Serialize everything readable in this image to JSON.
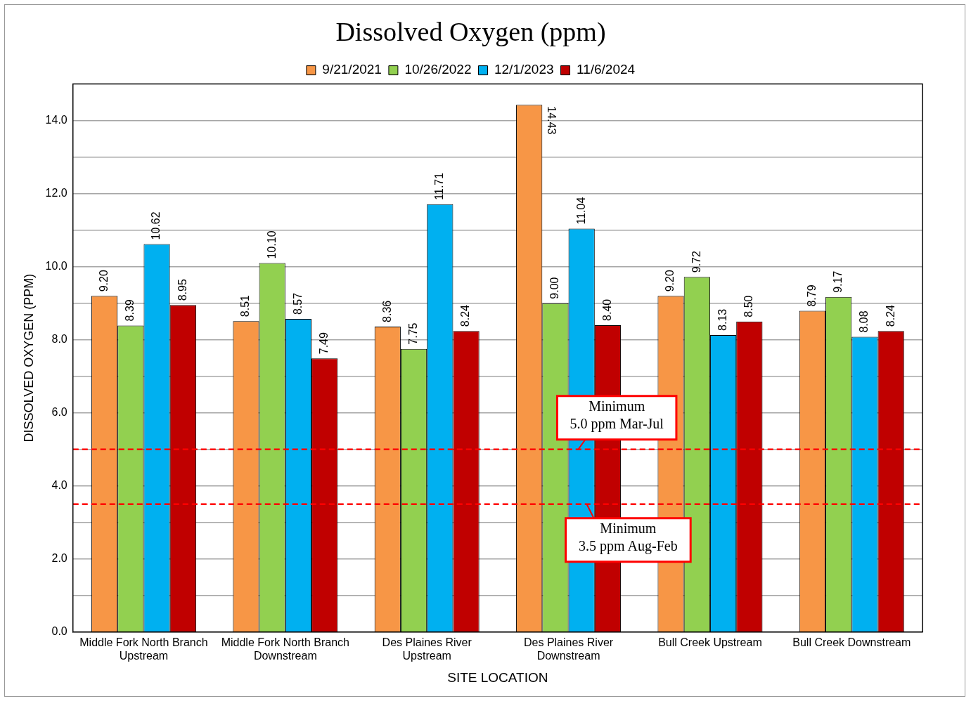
{
  "chart_data": {
    "type": "bar",
    "title": "Dissolved Oxygen (ppm)",
    "xlabel": "SITE LOCATION",
    "ylabel": "DISSOLVED OXYGEN (PPM)",
    "categories": [
      "Middle Fork North Branch\nUpstream",
      "Middle Fork North Branch\nDownstream",
      "Des Plaines River\nUpstream",
      "Des Plaines River\nDownstream",
      "Bull Creek Upstream",
      "Bull Creek Downstream"
    ],
    "series": [
      {
        "name": "9/21/2021",
        "color": "#f79646",
        "values": [
          9.2,
          8.51,
          8.36,
          14.43,
          9.2,
          8.79
        ],
        "value_labels": [
          "9.20",
          "8.51",
          "8.36",
          "14.43",
          "9.20",
          "8.79"
        ]
      },
      {
        "name": "10/26/2022",
        "color": "#92d050",
        "values": [
          8.39,
          10.1,
          7.75,
          9.0,
          9.72,
          9.17
        ],
        "value_labels": [
          "8.39",
          "10.10",
          "7.75",
          "9.00",
          "9.72",
          "9.17"
        ]
      },
      {
        "name": "12/1/2023",
        "color": "#00b0f0",
        "values": [
          10.62,
          8.57,
          11.71,
          11.04,
          8.13,
          8.08
        ],
        "value_labels": [
          "10.62",
          "8.57",
          "11.71",
          "11.04",
          "8.13",
          "8.08"
        ]
      },
      {
        "name": "11/6/2024",
        "color": "#c00000",
        "values": [
          8.95,
          7.49,
          8.24,
          8.4,
          8.5,
          8.24
        ],
        "value_labels": [
          "8.95",
          "7.49",
          "8.24",
          "8.40",
          "8.50",
          "8.24"
        ]
      }
    ],
    "ylim": [
      0,
      15
    ],
    "yticks": [
      {
        "value": 0,
        "label": "0.0"
      },
      {
        "value": 1,
        "label": null
      },
      {
        "value": 2,
        "label": "2.0"
      },
      {
        "value": 3,
        "label": null
      },
      {
        "value": 4,
        "label": "4.0"
      },
      {
        "value": 5,
        "label": null
      },
      {
        "value": 6,
        "label": "6.0"
      },
      {
        "value": 7,
        "label": null
      },
      {
        "value": 8,
        "label": "8.0"
      },
      {
        "value": 9,
        "label": null
      },
      {
        "value": 10,
        "label": "10.0"
      },
      {
        "value": 11,
        "label": null
      },
      {
        "value": 12,
        "label": "12.0"
      },
      {
        "value": 13,
        "label": null
      },
      {
        "value": 14,
        "label": "14.0"
      }
    ],
    "ref_lines": [
      {
        "axis": "y",
        "value": 5,
        "label": "Minimum\n5.0 ppm Mar-Jul",
        "color": "#ff0000",
        "line_style": "dashed"
      },
      {
        "axis": "y",
        "value": 3.5,
        "label": "Minimum\n3.5 ppm Aug-Feb",
        "color": "#ff0000",
        "line_style": "dashed"
      }
    ],
    "grid": "y",
    "legend": "top"
  }
}
